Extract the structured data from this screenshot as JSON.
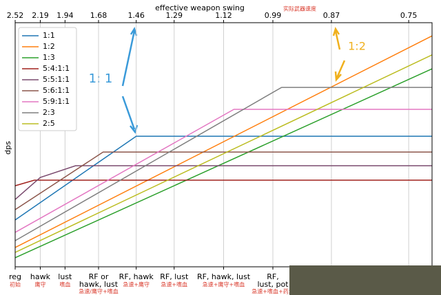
{
  "chart_data": {
    "type": "line",
    "x_title": "effective weapon swing",
    "x_title_cn": "实际武器速度",
    "y_title": "dps",
    "x_scale": "reciprocal",
    "xlim": [
      2.52,
      0.72
    ],
    "xticks": [
      2.52,
      2.19,
      1.94,
      1.68,
      1.46,
      1.29,
      1.12,
      0.99,
      0.87,
      0.75
    ],
    "ylim": [
      0,
      100
    ],
    "grid": true,
    "legend": "upper left",
    "bottom_labels": [
      [
        "reg"
      ],
      [
        "hawk"
      ],
      [
        "lust"
      ],
      [
        "RF or",
        "hawk, lust"
      ],
      [
        "RF, hawk"
      ],
      [
        "RF, lust"
      ],
      [
        "RF, hawk, lust"
      ],
      [
        "RF,",
        "lust, pot"
      ],
      null,
      null
    ],
    "bottom_labels_cn": [
      "初始",
      "鹰守",
      "嗜血",
      "急速/鹰守+嗜血",
      "急速+鹰守",
      "急速+嗜血",
      "急速+鹰守+嗜血",
      "急速+嗜血+药水",
      null,
      null
    ],
    "annotations": [
      "1: 1",
      "1:2"
    ],
    "series": [
      {
        "name": "1:1",
        "color": "#1f77b4",
        "x": [
          2.52,
          1.46,
          0.72
        ],
        "values": [
          19.2,
          53.5,
          53.5
        ]
      },
      {
        "name": "1:2",
        "color": "#ff7f0e",
        "x": [
          2.52,
          0.72
        ],
        "values": [
          7.9,
          94.6
        ]
      },
      {
        "name": "1:3",
        "color": "#2ca02c",
        "x": [
          2.52,
          0.72
        ],
        "values": [
          3.7,
          81.1
        ]
      },
      {
        "name": "5:4:1:1",
        "color": "#a0201c",
        "x": [
          2.52,
          2.26,
          0.72
        ],
        "values": [
          33.2,
          35.5,
          35.5
        ]
      },
      {
        "name": "5:5:1:1",
        "color": "#7a4a6e",
        "x": [
          2.52,
          2.19,
          1.85,
          0.72
        ],
        "values": [
          27.6,
          36.6,
          41.4,
          41.4
        ]
      },
      {
        "name": "5:6:1:1",
        "color": "#8c564b",
        "x": [
          2.52,
          1.65,
          0.72
        ],
        "values": [
          23.4,
          47.0,
          47.0
        ]
      },
      {
        "name": "5:9:1:1",
        "color": "#e377c2",
        "x": [
          2.52,
          1.09,
          0.72
        ],
        "values": [
          14.1,
          64.5,
          64.5
        ]
      },
      {
        "name": "2:3",
        "color": "#7f7f7f",
        "x": [
          2.52,
          0.97,
          0.72
        ],
        "values": [
          10.7,
          73.5,
          73.5
        ]
      },
      {
        "name": "2:5",
        "color": "#bcbd22",
        "x": [
          2.52,
          0.72
        ],
        "values": [
          5.9,
          86.8
        ]
      }
    ]
  }
}
